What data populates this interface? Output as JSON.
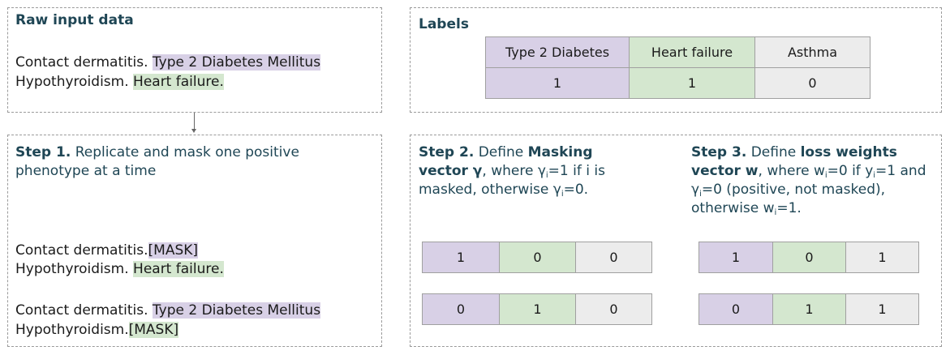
{
  "raw_input": {
    "title": "Raw input data",
    "line1_text": "Contact dermatitis.",
    "line1_hl": "Type 2 Diabetes Mellitus",
    "line2_text": "Hypothyroidism.",
    "line2_hl": "Heart failure."
  },
  "labels": {
    "title": "Labels",
    "headers": [
      "Type 2 Diabetes",
      "Heart failure",
      "Asthma"
    ],
    "values": [
      "1",
      "1",
      "0"
    ]
  },
  "step1": {
    "title": "Step 1.",
    "desc_line1": "Replicate and mask one positive",
    "desc_line2": "phenotype at a time",
    "ex1_line1_text": "Contact dermatitis.",
    "ex1_line1_mask": "[MASK]",
    "ex1_line2_text": "Hypothyroidism.",
    "ex1_line2_hl": "Heart failure.",
    "ex2_line1_text": "Contact dermatitis.",
    "ex2_line1_hl": "Type 2 Diabetes Mellitus",
    "ex2_line2_text": "Hypothyroidism.",
    "ex2_line2_mask": "[MASK]"
  },
  "step2": {
    "title": "Step 2.",
    "l1_a": "Define",
    "l1_b": "Masking",
    "l2_a": "vector γ",
    "l2_b": ", where  γ",
    "l2_sub": "i",
    "l2_c": "=1 if i is",
    "l3_a": "masked, otherwise γ",
    "l3_sub": "i",
    "l3_b": "=0.",
    "rows": [
      [
        "1",
        "0",
        "0"
      ],
      [
        "0",
        "1",
        "0"
      ]
    ]
  },
  "step3": {
    "title": "Step 3.",
    "l1_a": "Define",
    "l1_b": "loss weights",
    "l2_a": "vector w",
    "l2_b": ", where w",
    "l2_sub1": "i",
    "l2_c": "=0 if y",
    "l2_sub2": "i",
    "l2_d": "=1 and",
    "l3_a": "γ",
    "l3_sub": "i",
    "l3_b": "=0 (positive, not masked),",
    "l4_a": "otherwise w",
    "l4_sub": "i",
    "l4_b": "=1.",
    "rows": [
      [
        "1",
        "0",
        "1"
      ],
      [
        "0",
        "1",
        "1"
      ]
    ]
  },
  "colors": {
    "purple": "#d8d0e6",
    "green": "#d4e7cf",
    "gray": "#ececec",
    "title": "#1f4655"
  }
}
